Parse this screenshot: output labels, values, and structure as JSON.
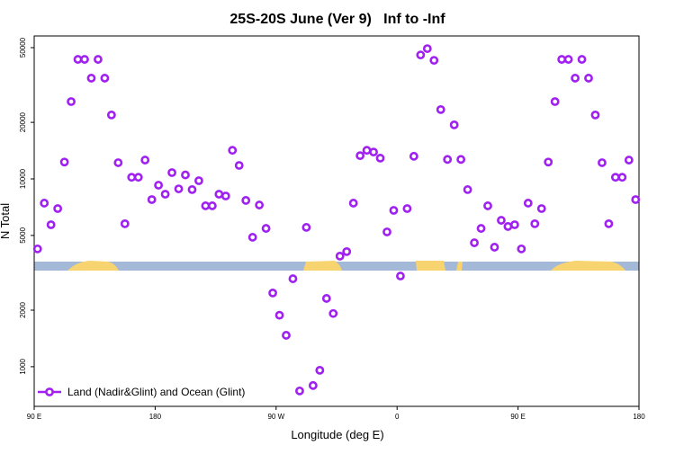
{
  "chart_data": {
    "type": "scatter",
    "title": "25S-20S June (Ver 9)   Inf to -Inf",
    "x_label": "Longitude (deg E)",
    "y_label": "N Total",
    "log_y": true,
    "grid": false,
    "legend_position": "bottom-left",
    "xlim": [
      90,
      540
    ],
    "xticks": [
      {
        "value": 90,
        "label": "90 E"
      },
      180,
      {
        "value": 270,
        "label": "90 W"
      },
      {
        "value": 360,
        "label": "0"
      },
      {
        "value": 450,
        "label": "90 E"
      },
      {
        "value": 540,
        "label": "180"
      }
    ],
    "ylim": [
      615,
      57700
    ],
    "yticks": [
      1000,
      2000,
      5000,
      10000,
      20000,
      50000
    ],
    "series": [
      {
        "name": "Land (Nadir&Glint) and Ocean (Glint)",
        "color": "#a020f0",
        "x": [
          92.5,
          97.5,
          102.5,
          107.5,
          112.5,
          117.5,
          122.5,
          127.5,
          132.5,
          137.5,
          142.5,
          147.5,
          152.5,
          157.5,
          162.5,
          167.5,
          172.5,
          177.5,
          182.5,
          187.5,
          192.5,
          197.5,
          202.5,
          207.5,
          212.5,
          217.5,
          222.5,
          227.5,
          232.5,
          237.5,
          242.5,
          247.5,
          252.5,
          257.5,
          262.5,
          267.5,
          272.5,
          277.5,
          282.5,
          287.5,
          292.5,
          297.5,
          302.5,
          307.5,
          312.5,
          317.5,
          322.5,
          327.5,
          332.5,
          337.5,
          342.5,
          347.5,
          352.5,
          357.5,
          362.5,
          367.5,
          372.5,
          377.5,
          382.5,
          387.5,
          392.5,
          397.5,
          402.5,
          407.5,
          412.5,
          417.5,
          422.5,
          427.5,
          432.5,
          437.5,
          442.5,
          447.5,
          452.5,
          457.5,
          462.5,
          467.5,
          472.5,
          477.5,
          482.5,
          487.5,
          492.5,
          497.5,
          502.5,
          507.5,
          512.5,
          517.5,
          522.5,
          527.5,
          532.5,
          537.5
        ],
        "values": [
          4240,
          7430,
          5700,
          6950,
          12300,
          25800,
          43300,
          43300,
          34400,
          43300,
          34400,
          21900,
          12200,
          5770,
          10200,
          10200,
          12600,
          7760,
          9260,
          8290,
          10800,
          8850,
          10500,
          8770,
          9780,
          7190,
          7190,
          8290,
          8110,
          14200,
          11800,
          7680,
          4890,
          7260,
          5450,
          2470,
          1880,
          1470,
          2940,
          743,
          5520,
          794,
          957,
          2310,
          1920,
          3880,
          4100,
          7430,
          13300,
          14200,
          13900,
          12900,
          5220,
          6800,
          3040,
          6950,
          13200,
          45700,
          49400,
          42800,
          23400,
          12700,
          19400,
          12700,
          8770,
          4570,
          5450,
          7190,
          4330,
          6020,
          5580,
          5700,
          4240,
          7430,
          5770,
          6950,
          12300,
          25800,
          43300,
          43300,
          34400,
          43300,
          34400,
          21900,
          12200,
          5770,
          10200,
          10200,
          12600,
          7760
        ]
      }
    ]
  }
}
